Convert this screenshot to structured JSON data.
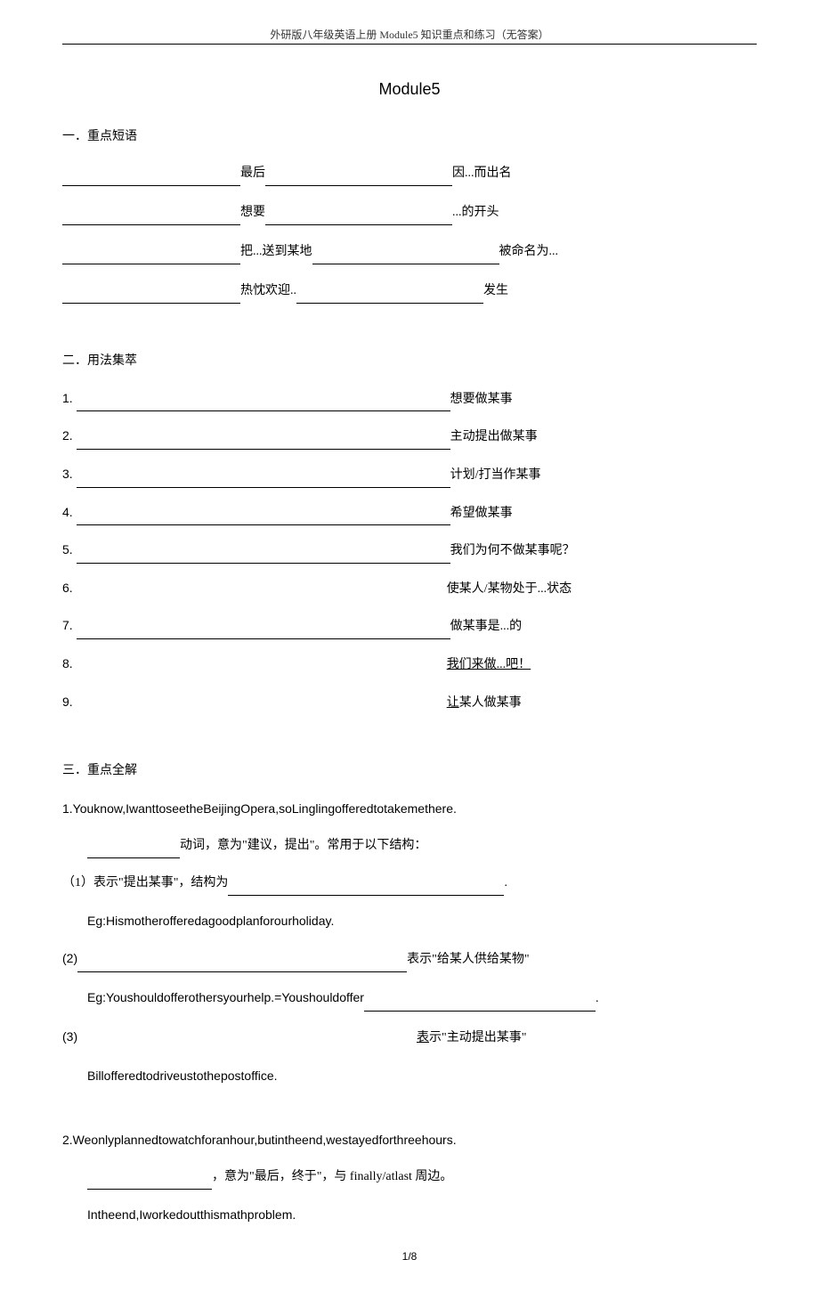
{
  "header": {
    "text": "外研版八年级英语上册 Module5 知识重点和练习（无答案）"
  },
  "title": "Module5",
  "section1": {
    "heading": "一．重点短语",
    "rows": [
      {
        "label1": "最后",
        "label2": "因...而出名"
      },
      {
        "label1": "想要",
        "label2": "...的开头"
      },
      {
        "label1": "把...送到某地",
        "label2": "被命名为..."
      },
      {
        "label1": "热忱欢迎..",
        "label2": "发生"
      }
    ]
  },
  "section2": {
    "heading": "二．用法集萃",
    "items": [
      {
        "num": "1.",
        "hasLine": true,
        "label": "想要做某事"
      },
      {
        "num": "2.",
        "hasLine": true,
        "label": "主动提出做某事"
      },
      {
        "num": "3.",
        "hasLine": true,
        "label": "计划/打当作某事"
      },
      {
        "num": "4.",
        "hasLine": true,
        "label": "希望做某事"
      },
      {
        "num": "5.",
        "hasLine": true,
        "label": "我们为何不做某事呢？"
      },
      {
        "num": "6.",
        "hasLine": false,
        "label": "使某人/某物处于...状态"
      },
      {
        "num": "7.",
        "hasLine": true,
        "label": "做某事是...的"
      },
      {
        "num": "8.",
        "hasLine": false,
        "label": "我们来做...吧！",
        "underline": true
      },
      {
        "num": "9.",
        "hasLine": false,
        "label": "让某人做某事",
        "underlinePrefix": "让",
        "rest": "某人做某事"
      }
    ]
  },
  "section3": {
    "heading": "三．重点全解",
    "p1": "1.Youknow,IwanttoseetheBeijingOpera,soLinglingofferedtotakemethere.",
    "p1_sub": "动词，意为\"建议，提出\"。常用于以下结构：",
    "p1_1_prefix": "（1）表示\"提出某事\"，结构为",
    "p1_1_suffix": ".",
    "p1_eg1": "Eg:Hismotherofferedagoodplanforourholiday.",
    "p1_2_prefix": "(2)",
    "p1_2_suffix": "表示\"给某人供给某物\"",
    "p1_eg2_prefix": "Eg:Youshouldofferothersyourhelp.=Youshouldoffer",
    "p1_eg2_suffix": ".",
    "p1_3_prefix": "(3)",
    "p1_3_label_underline": "表",
    "p1_3_label_rest": "示\"主动提出某事\"",
    "p1_eg3": "Billofferedtodriveustothepostoffice.",
    "p2": "2.Weonlyplannedtowatchforanhour,butintheend,westayedforthreehours.",
    "p2_sub_mid": "，意为\"最后，终于\"，与 finally/atlast 周边。",
    "p2_eg": "Intheend,Iworkedoutthismathproblem."
  },
  "footer": {
    "page": "1/8"
  }
}
